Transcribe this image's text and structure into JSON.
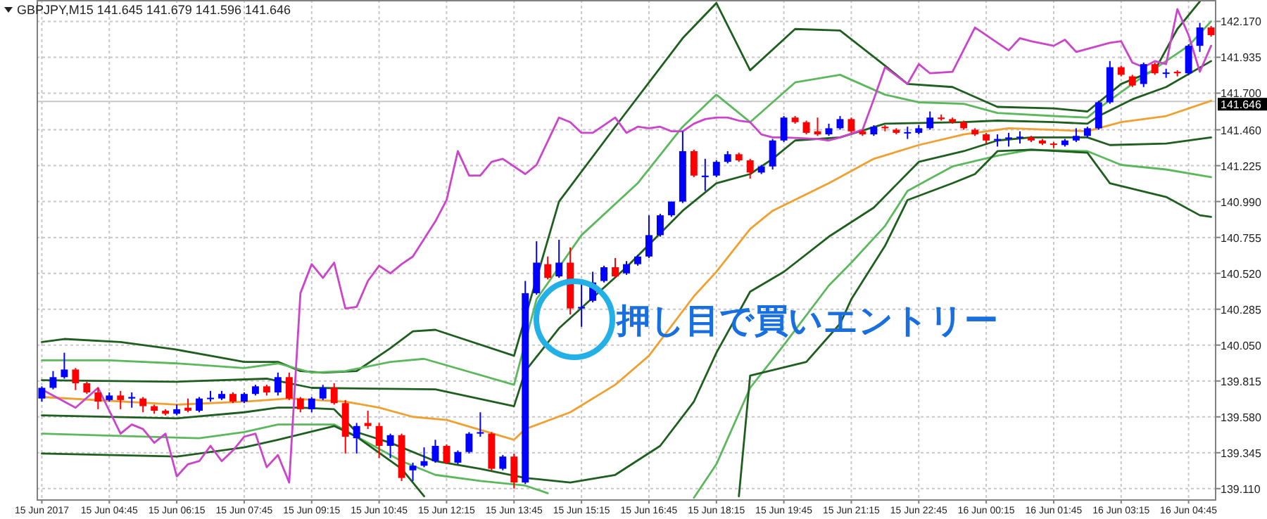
{
  "chart_data": {
    "type": "candlestick",
    "title": "GBPJPY,M15 141.645 141.679 141.596 141.646",
    "x": [
      "2017-06-15T03:15",
      "2017-06-15T03:30",
      "2017-06-15T03:45",
      "2017-06-15T04:00",
      "2017-06-15T04:15",
      "2017-06-15T04:30",
      "2017-06-15T04:45",
      "2017-06-15T05:00",
      "2017-06-15T05:15",
      "2017-06-15T05:30",
      "2017-06-15T05:45",
      "2017-06-15T06:00",
      "2017-06-15T06:15",
      "2017-06-15T06:30",
      "2017-06-15T06:45",
      "2017-06-15T07:00",
      "2017-06-15T07:15",
      "2017-06-15T07:30",
      "2017-06-15T07:45",
      "2017-06-15T08:00",
      "2017-06-15T08:15",
      "2017-06-15T08:30",
      "2017-06-15T08:45",
      "2017-06-15T09:00",
      "2017-06-15T09:15",
      "2017-06-15T09:30",
      "2017-06-15T09:45",
      "2017-06-15T10:00",
      "2017-06-15T10:15",
      "2017-06-15T10:30",
      "2017-06-15T10:45",
      "2017-06-15T11:00",
      "2017-06-15T11:15",
      "2017-06-15T11:30",
      "2017-06-15T11:45",
      "2017-06-15T12:00",
      "2017-06-15T12:15",
      "2017-06-15T12:30",
      "2017-06-15T12:45",
      "2017-06-15T13:00",
      "2017-06-15T13:15",
      "2017-06-15T13:30",
      "2017-06-15T13:45",
      "2017-06-15T14:00",
      "2017-06-15T14:15",
      "2017-06-15T14:30",
      "2017-06-15T14:45",
      "2017-06-15T15:00",
      "2017-06-15T15:15",
      "2017-06-15T15:30",
      "2017-06-15T15:45",
      "2017-06-15T16:00",
      "2017-06-15T16:15",
      "2017-06-15T16:30",
      "2017-06-15T16:45",
      "2017-06-15T17:00",
      "2017-06-15T17:15",
      "2017-06-15T17:30",
      "2017-06-15T17:45",
      "2017-06-15T18:00",
      "2017-06-15T18:15",
      "2017-06-15T18:30",
      "2017-06-15T18:45",
      "2017-06-15T19:00",
      "2017-06-15T19:15",
      "2017-06-15T19:30",
      "2017-06-15T19:45",
      "2017-06-15T20:00",
      "2017-06-15T20:15",
      "2017-06-15T20:30",
      "2017-06-15T20:45",
      "2017-06-15T21:00",
      "2017-06-15T21:15",
      "2017-06-15T21:30",
      "2017-06-15T21:45",
      "2017-06-15T22:00",
      "2017-06-15T22:15",
      "2017-06-15T22:30",
      "2017-06-15T22:45",
      "2017-06-15T23:00",
      "2017-06-15T23:15",
      "2017-06-15T23:30",
      "2017-06-15T23:45",
      "2017-06-16T00:00",
      "2017-06-16T00:15",
      "2017-06-16T00:30",
      "2017-06-16T00:45",
      "2017-06-16T01:00",
      "2017-06-16T01:15",
      "2017-06-16T01:30",
      "2017-06-16T01:45",
      "2017-06-16T02:00",
      "2017-06-16T02:15",
      "2017-06-16T02:30",
      "2017-06-16T02:45",
      "2017-06-16T03:00",
      "2017-06-16T03:15",
      "2017-06-16T03:30",
      "2017-06-16T03:45",
      "2017-06-16T04:00",
      "2017-06-16T04:15",
      "2017-06-16T04:30",
      "2017-06-16T04:45",
      "2017-06-16T05:00",
      "2017-06-16T05:15"
    ],
    "ohlc": [
      [
        139.7,
        139.78,
        139.68,
        139.77
      ],
      [
        139.77,
        139.88,
        139.76,
        139.84
      ],
      [
        139.84,
        140.0,
        139.83,
        139.89
      ],
      [
        139.89,
        139.9,
        139.755,
        139.8
      ],
      [
        139.8,
        139.81,
        139.73,
        139.74
      ],
      [
        139.74,
        139.77,
        139.63,
        139.68
      ],
      [
        139.69,
        139.74,
        139.68,
        139.72
      ],
      [
        139.72,
        139.75,
        139.63,
        139.69
      ],
      [
        139.7,
        139.74,
        139.64,
        139.71
      ],
      [
        139.7,
        139.71,
        139.61,
        139.65
      ],
      [
        139.65,
        139.66,
        139.6,
        139.62
      ],
      [
        139.62,
        139.63,
        139.59,
        139.6
      ],
      [
        139.6,
        139.66,
        139.59,
        139.63
      ],
      [
        139.64,
        139.7,
        139.61,
        139.62
      ],
      [
        139.62,
        139.71,
        139.61,
        139.7
      ],
      [
        139.7,
        139.75,
        139.68,
        139.705
      ],
      [
        139.7,
        139.75,
        139.69,
        139.73
      ],
      [
        139.73,
        139.74,
        139.67,
        139.68
      ],
      [
        139.68,
        139.74,
        139.67,
        139.73
      ],
      [
        139.73,
        139.79,
        139.72,
        139.78
      ],
      [
        139.78,
        139.79,
        139.72,
        139.74
      ],
      [
        139.74,
        139.87,
        139.72,
        139.84
      ],
      [
        139.84,
        139.87,
        139.69,
        139.7
      ],
      [
        139.7,
        139.71,
        139.61,
        139.63
      ],
      [
        139.63,
        139.71,
        139.61,
        139.7
      ],
      [
        139.7,
        139.79,
        139.69,
        139.77
      ],
      [
        139.77,
        139.8,
        139.66,
        139.67
      ],
      [
        139.67,
        139.69,
        139.34,
        139.45
      ],
      [
        139.44,
        139.54,
        139.34,
        139.52
      ],
      [
        139.54,
        139.62,
        139.5,
        139.52
      ],
      [
        139.52,
        139.54,
        139.31,
        139.39
      ],
      [
        139.39,
        139.47,
        139.31,
        139.46
      ],
      [
        139.46,
        139.47,
        139.16,
        139.18
      ],
      [
        139.23,
        139.28,
        139.16,
        139.26
      ],
      [
        139.26,
        139.38,
        139.25,
        139.29
      ],
      [
        139.29,
        139.43,
        139.28,
        139.39
      ],
      [
        139.39,
        139.4,
        139.27,
        139.28
      ],
      [
        139.28,
        139.36,
        139.27,
        139.35
      ],
      [
        139.35,
        139.48,
        139.34,
        139.47
      ],
      [
        139.47,
        139.61,
        139.45,
        139.48
      ],
      [
        139.47,
        139.48,
        139.23,
        139.24
      ],
      [
        139.24,
        139.33,
        139.23,
        139.32
      ],
      [
        139.32,
        139.34,
        139.11,
        139.15
      ],
      [
        139.15,
        140.47,
        139.14,
        140.39
      ],
      [
        140.39,
        140.73,
        140.38,
        140.59
      ],
      [
        140.58,
        140.63,
        140.48,
        140.49
      ],
      [
        140.5,
        140.74,
        140.49,
        140.59
      ],
      [
        140.59,
        140.69,
        140.25,
        140.29
      ],
      [
        140.29,
        140.45,
        140.17,
        140.3
      ],
      [
        140.34,
        140.53,
        140.33,
        140.46
      ],
      [
        140.47,
        140.57,
        140.46,
        140.56
      ],
      [
        140.56,
        140.62,
        140.49,
        140.5
      ],
      [
        140.52,
        140.6,
        140.51,
        140.58
      ],
      [
        140.58,
        140.64,
        140.57,
        140.63
      ],
      [
        140.63,
        140.9,
        140.62,
        140.77
      ],
      [
        140.77,
        140.91,
        140.76,
        140.9
      ],
      [
        140.9,
        140.99,
        140.89,
        140.99
      ],
      [
        140.99,
        141.45,
        140.98,
        141.32
      ],
      [
        141.32,
        141.33,
        141.15,
        141.16
      ],
      [
        141.15,
        141.27,
        141.06,
        141.16
      ],
      [
        141.16,
        141.26,
        141.15,
        141.25
      ],
      [
        141.25,
        141.32,
        141.24,
        141.3
      ],
      [
        141.3,
        141.31,
        141.25,
        141.26
      ],
      [
        141.26,
        141.27,
        141.14,
        141.18
      ],
      [
        141.18,
        141.23,
        141.17,
        141.22
      ],
      [
        141.22,
        141.4,
        141.2,
        141.39
      ],
      [
        141.39,
        141.55,
        141.38,
        141.54
      ],
      [
        141.54,
        141.55,
        141.5,
        141.51
      ],
      [
        141.51,
        141.52,
        141.43,
        141.44
      ],
      [
        141.45,
        141.54,
        141.42,
        141.43
      ],
      [
        141.43,
        141.5,
        141.42,
        141.47
      ],
      [
        141.47,
        141.55,
        141.46,
        141.53
      ],
      [
        141.53,
        141.54,
        141.44,
        141.45
      ],
      [
        141.45,
        141.46,
        141.42,
        141.43
      ],
      [
        141.43,
        141.49,
        141.42,
        141.48
      ],
      [
        141.48,
        141.49,
        141.45,
        141.47
      ],
      [
        141.46,
        141.47,
        141.43,
        141.44
      ],
      [
        141.44,
        141.48,
        141.4,
        141.445
      ],
      [
        141.44,
        141.49,
        141.43,
        141.47
      ],
      [
        141.47,
        141.58,
        141.46,
        141.54
      ],
      [
        141.54,
        141.56,
        141.52,
        141.53
      ],
      [
        141.53,
        141.54,
        141.5,
        141.51
      ],
      [
        141.51,
        141.52,
        141.46,
        141.47
      ],
      [
        141.46,
        141.47,
        141.42,
        141.43
      ],
      [
        141.43,
        141.44,
        141.37,
        141.39
      ],
      [
        141.39,
        141.43,
        141.35,
        141.4
      ],
      [
        141.4,
        141.44,
        141.35,
        141.41
      ],
      [
        141.41,
        141.45,
        141.37,
        141.415
      ],
      [
        141.41,
        141.42,
        141.38,
        141.39
      ],
      [
        141.39,
        141.4,
        141.36,
        141.37
      ],
      [
        141.37,
        141.38,
        141.34,
        141.365
      ],
      [
        141.36,
        141.4,
        141.35,
        141.39
      ],
      [
        141.39,
        141.47,
        141.38,
        141.42
      ],
      [
        141.42,
        141.48,
        141.41,
        141.47
      ],
      [
        141.47,
        141.65,
        141.46,
        141.64
      ],
      [
        141.64,
        141.91,
        141.63,
        141.87
      ],
      [
        141.87,
        141.88,
        141.81,
        141.82
      ],
      [
        141.81,
        141.82,
        141.74,
        141.75
      ],
      [
        141.76,
        141.9,
        141.74,
        141.89
      ],
      [
        141.89,
        141.9,
        141.82,
        141.83
      ],
      [
        141.83,
        141.86,
        141.8,
        141.835
      ],
      [
        141.84,
        141.85,
        141.81,
        141.83
      ],
      [
        141.83,
        142.02,
        141.82,
        142.01
      ],
      [
        142.01,
        142.16,
        141.97,
        142.13
      ],
      [
        142.13,
        142.14,
        142.07,
        142.08
      ]
    ],
    "colors": [
      "#0000ff",
      "#0000ff",
      "#0000ff",
      "#ff0000",
      "#ff0000",
      "#ff0000",
      "#0000ff",
      "#ff0000",
      "#0000ff",
      "#ff0000",
      "#ff0000",
      "#ff0000",
      "#0000ff",
      "#ff0000",
      "#0000ff",
      "#0000ff",
      "#0000ff",
      "#ff0000",
      "#0000ff",
      "#0000ff",
      "#ff0000",
      "#0000ff",
      "#ff0000",
      "#ff0000",
      "#0000ff",
      "#0000ff",
      "#ff0000",
      "#ff0000",
      "#0000ff",
      "#ff0000",
      "#ff0000",
      "#0000ff",
      "#ff0000",
      "#0000ff",
      "#0000ff",
      "#0000ff",
      "#ff0000",
      "#0000ff",
      "#0000ff",
      "#0000ff",
      "#ff0000",
      "#0000ff",
      "#ff0000",
      "#0000ff",
      "#0000ff",
      "#ff0000",
      "#0000ff",
      "#ff0000",
      "#0000ff",
      "#0000ff",
      "#0000ff",
      "#ff0000",
      "#0000ff",
      "#0000ff",
      "#0000ff",
      "#0000ff",
      "#0000ff",
      "#0000ff",
      "#ff0000",
      "#0000ff",
      "#0000ff",
      "#0000ff",
      "#ff0000",
      "#ff0000",
      "#0000ff",
      "#0000ff",
      "#0000ff",
      "#ff0000",
      "#ff0000",
      "#ff0000",
      "#0000ff",
      "#0000ff",
      "#ff0000",
      "#ff0000",
      "#0000ff",
      "#ff0000",
      "#ff0000",
      "#0000ff",
      "#0000ff",
      "#0000ff",
      "#ff0000",
      "#ff0000",
      "#ff0000",
      "#ff0000",
      "#ff0000",
      "#0000ff",
      "#0000ff",
      "#0000ff",
      "#ff0000",
      "#ff0000",
      "#ff0000",
      "#0000ff",
      "#0000ff",
      "#0000ff",
      "#0000ff",
      "#0000ff",
      "#ff0000",
      "#ff0000",
      "#0000ff",
      "#ff0000",
      "#0000ff",
      "#ff0000",
      "#0000ff",
      "#0000ff",
      "#ff0000"
    ],
    "series": [
      {
        "type": "line",
        "color": "#1e5e1e",
        "x": [
          "2017-06-15T03:15",
          "2017-06-15T03:45",
          "2017-06-15T05:00",
          "2017-06-15T06:15",
          "2017-06-15T07:45",
          "2017-06-15T08:30",
          "2017-06-15T09:00",
          "2017-06-15T09:30",
          "2017-06-15T10:15",
          "2017-06-15T11:00",
          "2017-06-15T11:30",
          "2017-06-15T12:00",
          "2017-06-15T13:45",
          "2017-06-15T14:45",
          "2017-06-15T16:00",
          "2017-06-15T17:30",
          "2017-06-15T18:15",
          "2017-06-15T19:00",
          "2017-06-15T20:00",
          "2017-06-15T21:00",
          "2017-06-15T22:00",
          "2017-06-15T22:30",
          "2017-06-15T23:30",
          "2017-06-16T00:30",
          "2017-06-16T01:45",
          "2017-06-16T02:30",
          "2017-06-16T03:15",
          "2017-06-16T04:00",
          "2017-06-16T04:30",
          "2017-06-16T05:00"
        ],
        "values": [
          140.07,
          140.09,
          140.07,
          140.02,
          139.94,
          139.94,
          139.88,
          139.87,
          139.88,
          140.03,
          140.14,
          140.15,
          139.98,
          140.99,
          141.48,
          142.06,
          142.29,
          141.85,
          142.12,
          142.11,
          141.88,
          141.76,
          141.74,
          141.61,
          141.6,
          141.58,
          141.76,
          141.85,
          142.12,
          142.3
        ]
      },
      {
        "type": "line",
        "color": "#5cb85c",
        "x": [
          "2017-06-15T03:15",
          "2017-06-15T04:45",
          "2017-06-15T06:15",
          "2017-06-15T07:45",
          "2017-06-15T08:30",
          "2017-06-15T09:15",
          "2017-06-15T10:00",
          "2017-06-15T11:00",
          "2017-06-15T11:45",
          "2017-06-15T13:45",
          "2017-06-15T14:15",
          "2017-06-15T15:15",
          "2017-06-15T16:30",
          "2017-06-15T17:30",
          "2017-06-15T18:15",
          "2017-06-15T19:00",
          "2017-06-15T20:00",
          "2017-06-15T21:00",
          "2017-06-15T22:00",
          "2017-06-15T22:45",
          "2017-06-15T23:45",
          "2017-06-16T00:30",
          "2017-06-16T01:45",
          "2017-06-16T02:30",
          "2017-06-16T02:45",
          "2017-06-16T03:30",
          "2017-06-16T04:45",
          "2017-06-16T05:15"
        ],
        "values": [
          139.95,
          139.95,
          139.93,
          139.9,
          139.93,
          139.87,
          139.88,
          139.94,
          139.96,
          139.79,
          140.35,
          140.77,
          141.11,
          141.48,
          141.69,
          141.51,
          141.77,
          141.82,
          141.69,
          141.64,
          141.63,
          141.57,
          141.55,
          141.54,
          141.6,
          141.76,
          142.01,
          142.17
        ]
      },
      {
        "type": "line",
        "color": "#1e5e1e",
        "x": [
          "2017-06-15T03:15",
          "2017-06-15T06:15",
          "2017-06-15T08:15",
          "2017-06-15T09:15",
          "2017-06-15T12:00",
          "2017-06-15T13:45",
          "2017-06-15T14:00",
          "2017-06-15T14:45",
          "2017-06-15T16:15",
          "2017-06-15T17:30",
          "2017-06-15T18:15",
          "2017-06-15T19:00",
          "2017-06-15T19:30",
          "2017-06-15T20:00",
          "2017-06-15T21:00",
          "2017-06-15T22:00",
          "2017-06-15T23:45",
          "2017-06-16T00:30",
          "2017-06-16T01:45",
          "2017-06-16T02:30",
          "2017-06-16T02:45",
          "2017-06-16T03:30",
          "2017-06-16T04:15",
          "2017-06-16T05:15"
        ],
        "values": [
          139.82,
          139.81,
          139.83,
          139.77,
          139.76,
          139.65,
          139.88,
          140.16,
          140.56,
          140.93,
          141.11,
          141.17,
          141.27,
          141.39,
          141.41,
          141.5,
          141.51,
          141.52,
          141.51,
          141.5,
          141.55,
          141.66,
          141.74,
          141.91
        ]
      },
      {
        "type": "line",
        "color": "#f0a030",
        "x": [
          "2017-06-15T03:15",
          "2017-06-15T06:15",
          "2017-06-15T07:45",
          "2017-06-15T08:45",
          "2017-06-15T10:00",
          "2017-06-15T10:45",
          "2017-06-15T11:30",
          "2017-06-15T12:15",
          "2017-06-15T13:45",
          "2017-06-15T14:00",
          "2017-06-15T15:00",
          "2017-06-15T16:00",
          "2017-06-15T16:45",
          "2017-06-15T17:45",
          "2017-06-15T18:15",
          "2017-06-15T19:00",
          "2017-06-15T19:30",
          "2017-06-15T20:45",
          "2017-06-15T21:45",
          "2017-06-15T22:45",
          "2017-06-15T23:45",
          "2017-06-16T00:45",
          "2017-06-16T01:45",
          "2017-06-16T02:30",
          "2017-06-16T03:15",
          "2017-06-16T04:15",
          "2017-06-16T05:15"
        ],
        "values": [
          139.71,
          139.66,
          139.68,
          139.7,
          139.68,
          139.64,
          139.58,
          139.56,
          139.43,
          139.5,
          139.61,
          139.79,
          139.98,
          140.37,
          140.53,
          140.81,
          140.93,
          141.11,
          141.27,
          141.36,
          141.43,
          141.47,
          141.46,
          141.45,
          141.51,
          141.55,
          141.65
        ]
      },
      {
        "type": "line",
        "color": "#1e5e1e",
        "x": [
          "2017-06-15T03:15",
          "2017-06-15T06:15",
          "2017-06-15T07:45",
          "2017-06-15T08:30",
          "2017-06-15T09:00",
          "2017-06-15T09:45",
          "2017-06-15T10:15",
          "2017-06-15T11:00",
          "2017-06-15T12:00",
          "2017-06-15T13:00",
          "2017-06-15T14:00",
          "2017-06-15T15:00",
          "2017-06-15T16:00",
          "2017-06-15T17:00",
          "2017-06-15T17:45",
          "2017-06-15T18:15",
          "2017-06-15T19:00",
          "2017-06-15T19:45",
          "2017-06-15T20:45",
          "2017-06-15T21:45",
          "2017-06-15T22:45",
          "2017-06-15T23:45",
          "2017-06-16T00:30",
          "2017-06-16T01:15",
          "2017-06-16T02:30",
          "2017-06-16T03:00",
          "2017-06-16T04:15",
          "2017-06-16T05:15"
        ],
        "values": [
          139.59,
          139.57,
          139.61,
          139.64,
          139.64,
          139.63,
          139.48,
          139.41,
          139.29,
          139.24,
          139.18,
          139.15,
          139.2,
          139.39,
          139.68,
          140.0,
          140.4,
          140.53,
          140.76,
          140.95,
          141.25,
          141.32,
          141.39,
          141.41,
          141.41,
          141.36,
          141.37,
          141.41
        ]
      },
      {
        "type": "line",
        "color": "#5cb85c",
        "x": [
          "2017-06-15T03:15",
          "2017-06-15T06:45",
          "2017-06-15T07:45",
          "2017-06-15T08:30",
          "2017-06-15T09:45",
          "2017-06-15T10:15",
          "2017-06-15T11:15",
          "2017-06-15T12:00",
          "2017-06-15T13:00",
          "2017-06-15T14:00",
          "2017-06-15T14:30"
        ],
        "values": [
          139.47,
          139.44,
          139.48,
          139.53,
          139.53,
          139.45,
          139.29,
          139.2,
          139.16,
          139.13,
          139.08
        ]
      },
      {
        "type": "line",
        "color": "#5cb85c",
        "x": [
          "2017-06-15T17:45",
          "2017-06-15T18:15",
          "2017-06-15T19:00",
          "2017-06-15T19:45",
          "2017-06-15T20:45",
          "2017-06-15T21:15",
          "2017-06-15T22:00",
          "2017-06-15T22:30",
          "2017-06-15T23:30",
          "2017-06-16T00:30",
          "2017-06-16T01:15",
          "2017-06-16T02:30",
          "2017-06-16T03:15",
          "2017-06-16T04:15",
          "2017-06-16T05:15"
        ],
        "values": [
          139.05,
          139.27,
          139.77,
          140.05,
          140.44,
          140.59,
          140.83,
          141.06,
          141.22,
          141.29,
          141.33,
          141.32,
          141.23,
          141.2,
          141.15
        ]
      },
      {
        "type": "line",
        "color": "#1e5e1e",
        "x": [
          "2017-06-15T03:15",
          "2017-06-15T06:15",
          "2017-06-15T07:45",
          "2017-06-15T08:30",
          "2017-06-15T09:45",
          "2017-06-15T10:15",
          "2017-06-15T11:15",
          "2017-06-15T11:45"
        ],
        "values": [
          139.34,
          139.32,
          139.38,
          139.43,
          139.52,
          139.45,
          139.24,
          139.06
        ]
      },
      {
        "type": "line",
        "color": "#1e5e1e",
        "x": [
          "2017-06-15T18:45",
          "2017-06-15T19:00",
          "2017-06-15T20:15",
          "2017-06-15T21:00",
          "2017-06-15T21:15",
          "2017-06-15T22:00",
          "2017-06-15T22:30",
          "2017-06-15T23:30",
          "2017-06-16T00:00",
          "2017-06-16T00:30",
          "2017-06-16T01:15",
          "2017-06-16T02:30",
          "2017-06-16T03:00",
          "2017-06-16T04:15",
          "2017-06-16T05:00",
          "2017-06-16T05:15"
        ],
        "values": [
          139.06,
          139.85,
          139.94,
          140.19,
          140.35,
          140.7,
          141.0,
          141.11,
          141.17,
          141.32,
          141.33,
          141.31,
          141.11,
          141.02,
          140.9,
          140.89
        ]
      },
      {
        "type": "line",
        "color": "#cc44cc",
        "x": [
          "2017-06-15T03:15",
          "2017-06-15T04:00",
          "2017-06-15T04:30",
          "2017-06-15T05:00",
          "2017-06-15T05:15",
          "2017-06-15T05:30",
          "2017-06-15T05:45",
          "2017-06-15T06:00",
          "2017-06-15T06:15",
          "2017-06-15T06:30",
          "2017-06-15T06:45",
          "2017-06-15T07:00",
          "2017-06-15T07:15",
          "2017-06-15T07:30",
          "2017-06-15T07:45",
          "2017-06-15T08:00",
          "2017-06-15T08:15",
          "2017-06-15T08:30",
          "2017-06-15T08:45",
          "2017-06-15T09:00",
          "2017-06-15T09:15",
          "2017-06-15T09:30",
          "2017-06-15T09:45",
          "2017-06-15T10:00",
          "2017-06-15T10:15",
          "2017-06-15T10:30",
          "2017-06-15T10:45",
          "2017-06-15T11:00",
          "2017-06-15T11:15",
          "2017-06-15T11:30",
          "2017-06-15T12:00",
          "2017-06-15T12:15",
          "2017-06-15T12:30",
          "2017-06-15T12:45",
          "2017-06-15T13:00",
          "2017-06-15T13:15",
          "2017-06-15T13:30",
          "2017-06-15T14:00",
          "2017-06-15T14:15",
          "2017-06-15T14:45",
          "2017-06-15T15:00",
          "2017-06-15T15:15",
          "2017-06-15T15:30",
          "2017-06-15T15:45",
          "2017-06-15T16:00",
          "2017-06-15T16:15",
          "2017-06-15T16:30",
          "2017-06-15T16:45",
          "2017-06-15T17:00",
          "2017-06-15T17:15",
          "2017-06-15T17:30",
          "2017-06-15T17:45",
          "2017-06-15T18:00",
          "2017-06-15T18:15",
          "2017-06-15T18:30",
          "2017-06-15T18:45",
          "2017-06-15T19:00",
          "2017-06-15T19:15",
          "2017-06-15T19:30",
          "2017-06-15T19:45",
          "2017-06-15T20:30",
          "2017-06-15T20:45",
          "2017-06-15T21:00",
          "2017-06-15T21:30",
          "2017-06-15T21:45",
          "2017-06-15T22:00",
          "2017-06-15T22:30",
          "2017-06-15T22:45",
          "2017-06-15T23:00",
          "2017-06-15T23:30",
          "2017-06-16T00:00",
          "2017-06-16T00:30",
          "2017-06-16T00:45",
          "2017-06-16T01:00",
          "2017-06-16T01:15",
          "2017-06-16T01:45",
          "2017-06-16T02:00",
          "2017-06-16T02:15",
          "2017-06-16T03:00",
          "2017-06-16T03:15",
          "2017-06-16T03:30",
          "2017-06-16T03:45",
          "2017-06-16T04:00",
          "2017-06-16T04:15",
          "2017-06-16T04:30",
          "2017-06-16T04:45",
          "2017-06-16T05:00",
          "2017-06-16T05:15"
        ],
        "values": [
          139.76,
          139.64,
          139.77,
          139.47,
          139.53,
          139.5,
          139.41,
          139.47,
          139.19,
          139.27,
          139.29,
          139.39,
          139.29,
          139.36,
          139.45,
          139.47,
          139.25,
          139.33,
          139.15,
          140.39,
          140.58,
          140.49,
          140.59,
          140.29,
          140.3,
          140.47,
          140.57,
          140.52,
          140.58,
          140.63,
          140.86,
          141.0,
          141.32,
          141.16,
          141.16,
          141.25,
          141.27,
          141.17,
          141.23,
          141.54,
          141.51,
          141.44,
          141.44,
          141.49,
          141.54,
          141.44,
          141.48,
          141.47,
          141.48,
          141.45,
          141.45,
          141.5,
          141.53,
          141.54,
          141.54,
          141.52,
          141.51,
          141.43,
          141.41,
          141.41,
          141.4,
          141.39,
          141.41,
          141.46,
          141.66,
          141.87,
          141.76,
          141.89,
          141.83,
          141.84,
          142.13,
          142.03,
          141.98,
          142.06,
          142.04,
          142.01,
          142.05,
          141.97,
          142.03,
          142.04,
          141.9,
          141.87,
          141.91,
          141.89,
          142.25,
          142.08,
          141.84,
          142.01
        ]
      }
    ],
    "xlim": [
      "2017-06-15T03:08",
      "2017-06-16T05:22"
    ],
    "ylim": [
      139.04,
      142.31
    ],
    "xticks": [
      {
        "value": "2017-06-15T03:15",
        "label": "15 Jun 2017"
      },
      {
        "value": "2017-06-15T04:45",
        "label": "15 Jun 04:45"
      },
      {
        "value": "2017-06-15T06:15",
        "label": "15 Jun 06:15"
      },
      {
        "value": "2017-06-15T07:45",
        "label": "15 Jun 07:45"
      },
      {
        "value": "2017-06-15T09:15",
        "label": "15 Jun 09:15"
      },
      {
        "value": "2017-06-15T10:45",
        "label": "15 Jun 10:45"
      },
      {
        "value": "2017-06-15T12:15",
        "label": "15 Jun 12:15"
      },
      {
        "value": "2017-06-15T13:45",
        "label": "15 Jun 13:45"
      },
      {
        "value": "2017-06-15T15:15",
        "label": "15 Jun 15:15"
      },
      {
        "value": "2017-06-15T16:45",
        "label": "15 Jun 16:45"
      },
      {
        "value": "2017-06-15T18:15",
        "label": "15 Jun 18:15"
      },
      {
        "value": "2017-06-15T19:45",
        "label": "15 Jun 19:45"
      },
      {
        "value": "2017-06-15T21:15",
        "label": "15 Jun 21:15"
      },
      {
        "value": "2017-06-15T22:45",
        "label": "15 Jun 22:45"
      },
      {
        "value": "2017-06-16T00:15",
        "label": "16 Jun 00:15"
      },
      {
        "value": "2017-06-16T01:45",
        "label": "16 Jun 01:45"
      },
      {
        "value": "2017-06-16T03:15",
        "label": "16 Jun 03:15"
      },
      {
        "value": "2017-06-16T04:45",
        "label": "16 Jun 04:45"
      }
    ],
    "yticks": [
      {
        "value": 142.17,
        "label": "142.170"
      },
      {
        "value": 141.935,
        "label": "141.935"
      },
      {
        "value": 141.7,
        "label": "141.700"
      },
      {
        "value": 141.46,
        "label": "141.460"
      },
      {
        "value": 141.225,
        "label": "141.225"
      },
      {
        "value": 140.99,
        "label": "140.990"
      },
      {
        "value": 140.755,
        "label": "140.755"
      },
      {
        "value": 140.52,
        "label": "140.520"
      },
      {
        "value": 140.285,
        "label": "140.285"
      },
      {
        "value": 140.05,
        "label": "140.050"
      },
      {
        "value": 139.815,
        "label": "139.815"
      },
      {
        "value": 139.58,
        "label": "139.580"
      },
      {
        "value": 139.345,
        "label": "139.345"
      },
      {
        "value": 139.11,
        "label": "139.110"
      }
    ],
    "grid": true,
    "ref_lines": [
      {
        "axis": "y",
        "value": 141.646,
        "label": "141.646",
        "color": "#c8c8c8"
      }
    ],
    "annotations": [
      "押し目で買いエントリー"
    ]
  }
}
